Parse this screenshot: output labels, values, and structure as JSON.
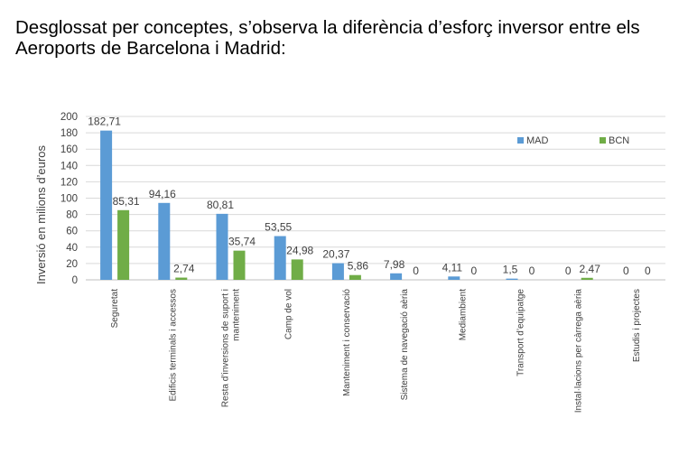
{
  "title_line1": "Desglossat per conceptes, s’observa la diferència d’esforç inversor entre els",
  "title_line2": "Aeroports de Barcelona i Madrid:",
  "chart_data": {
    "type": "bar",
    "categories": [
      "Seguretat",
      "Edificis terminals i accessos",
      "Resta d’inversions de suport i manteniment",
      "Camp de vol",
      "Manteniment i conservació",
      "Sistema de navegació aèria",
      "Mediambient",
      "Transport d’equipatge",
      "Instal·lacions per càrrega aèria",
      "Estudis i projectes"
    ],
    "category_lines": [
      [
        "Seguretat"
      ],
      [
        "Edificis terminals i accessos"
      ],
      [
        "Resta d’inversions de suport i",
        "manteniment"
      ],
      [
        "Camp de vol"
      ],
      [
        "Manteniment i conservació"
      ],
      [
        "Sistema de navegació aèria"
      ],
      [
        "Mediambient"
      ],
      [
        "Transport d’equipatge"
      ],
      [
        "Instal·lacions per càrrega aèria"
      ],
      [
        "Estudis i projectes"
      ]
    ],
    "series": [
      {
        "name": "MAD",
        "color": "#5b9bd5",
        "values": [
          182.71,
          94.16,
          80.81,
          53.55,
          20.37,
          7.98,
          4.11,
          1.5,
          0,
          0
        ],
        "labels": [
          "182,71",
          "94,16",
          "80,81",
          "53,55",
          "20,37",
          "7,98",
          "4,11",
          "1,5",
          "0",
          "0"
        ]
      },
      {
        "name": "BCN",
        "color": "#70ad47",
        "values": [
          85.31,
          2.74,
          35.74,
          24.98,
          5.86,
          0,
          0,
          0,
          2.47,
          0
        ],
        "labels": [
          "85,31",
          "2,74",
          "35,74",
          "24,98",
          "5,86",
          "0",
          "0",
          "0",
          "2,47",
          "0"
        ]
      }
    ],
    "yticks": [
      0,
      20,
      40,
      60,
      80,
      100,
      120,
      140,
      160,
      180,
      200
    ],
    "ylim": [
      0,
      200
    ],
    "ylabel": "Inversió en milions d’euros",
    "xlabel": "",
    "legend_position": "top-right",
    "grid": true
  }
}
